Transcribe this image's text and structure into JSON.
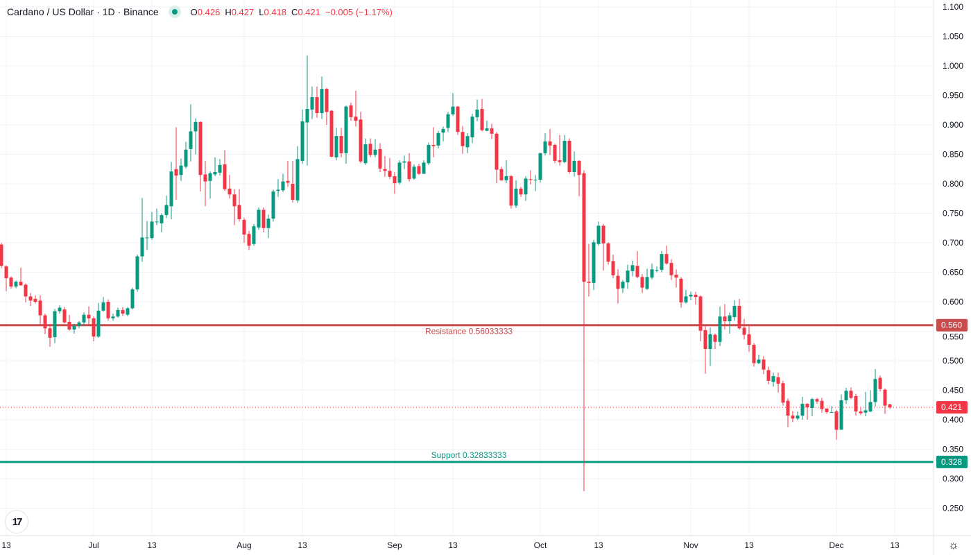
{
  "header": {
    "title": "Cardano / US Dollar · 1D · Binance",
    "open_label": "O",
    "open": "0.426",
    "high_label": "H",
    "high": "0.427",
    "low_label": "L",
    "low": "0.418",
    "close_label": "C",
    "close": "0.421",
    "change": "−0.005 (−1.17%)"
  },
  "logo": "TV",
  "colors": {
    "up": "#089981",
    "down": "#f23645",
    "resistance": "#c94b4b",
    "support": "#089981",
    "grid": "#f0f3fa",
    "text": "#131722"
  },
  "chart_data": {
    "type": "candlestick",
    "title": "Cardano / US Dollar · 1D · Binance",
    "x_start_date": "Jun 12",
    "ylim": [
      0.235,
      1.11
    ],
    "y_ticks": [
      "1.100",
      "1.050",
      "1.000",
      "0.950",
      "0.900",
      "0.850",
      "0.800",
      "0.750",
      "0.700",
      "0.650",
      "0.600",
      "0.550",
      "0.500",
      "0.450",
      "0.400",
      "0.350",
      "0.300",
      "0.250"
    ],
    "x_ticks": [
      {
        "label": "13",
        "index": 1
      },
      {
        "label": "Jul",
        "index": 19
      },
      {
        "label": "13",
        "index": 31
      },
      {
        "label": "Aug",
        "index": 50
      },
      {
        "label": "13",
        "index": 62
      },
      {
        "label": "Sep",
        "index": 81
      },
      {
        "label": "13",
        "index": 93
      },
      {
        "label": "Oct",
        "index": 111
      },
      {
        "label": "13",
        "index": 123
      },
      {
        "label": "Nov",
        "index": 142
      },
      {
        "label": "13",
        "index": 154
      },
      {
        "label": "Dec",
        "index": 172
      },
      {
        "label": "13",
        "index": 184
      }
    ],
    "lines": [
      {
        "name": "Resistance",
        "label": "Resistance 0.56033333",
        "value": 0.56033333,
        "tag": "0.560",
        "color": "#c94b4b"
      },
      {
        "name": "Support",
        "label": "Support 0.32833333",
        "value": 0.32833333,
        "tag": "0.328",
        "color": "#089981"
      }
    ],
    "last_price": {
      "value": 0.421,
      "tag": "0.421",
      "color": "#f23645"
    },
    "ohlc": [
      [
        0.697,
        0.7,
        0.657,
        0.661
      ],
      [
        0.66,
        0.662,
        0.618,
        0.64
      ],
      [
        0.641,
        0.643,
        0.622,
        0.626
      ],
      [
        0.626,
        0.636,
        0.623,
        0.634
      ],
      [
        0.634,
        0.658,
        0.627,
        0.628
      ],
      [
        0.629,
        0.631,
        0.599,
        0.609
      ],
      [
        0.609,
        0.615,
        0.593,
        0.602
      ],
      [
        0.605,
        0.611,
        0.597,
        0.6
      ],
      [
        0.602,
        0.611,
        0.561,
        0.577
      ],
      [
        0.577,
        0.58,
        0.545,
        0.555
      ],
      [
        0.555,
        0.562,
        0.524,
        0.539
      ],
      [
        0.54,
        0.588,
        0.53,
        0.584
      ],
      [
        0.584,
        0.594,
        0.58,
        0.59
      ],
      [
        0.587,
        0.591,
        0.563,
        0.565
      ],
      [
        0.566,
        0.578,
        0.551,
        0.553
      ],
      [
        0.553,
        0.563,
        0.546,
        0.559
      ],
      [
        0.559,
        0.567,
        0.555,
        0.565
      ],
      [
        0.565,
        0.582,
        0.559,
        0.578
      ],
      [
        0.578,
        0.592,
        0.56,
        0.572
      ],
      [
        0.572,
        0.575,
        0.533,
        0.541
      ],
      [
        0.541,
        0.598,
        0.539,
        0.585
      ],
      [
        0.585,
        0.608,
        0.583,
        0.599
      ],
      [
        0.6,
        0.604,
        0.568,
        0.572
      ],
      [
        0.572,
        0.58,
        0.568,
        0.575
      ],
      [
        0.575,
        0.59,
        0.573,
        0.586
      ],
      [
        0.586,
        0.591,
        0.576,
        0.58
      ],
      [
        0.578,
        0.591,
        0.575,
        0.589
      ],
      [
        0.589,
        0.624,
        0.587,
        0.621
      ],
      [
        0.621,
        0.68,
        0.617,
        0.677
      ],
      [
        0.677,
        0.776,
        0.668,
        0.709
      ],
      [
        0.709,
        0.737,
        0.688,
        0.709
      ],
      [
        0.708,
        0.752,
        0.705,
        0.736
      ],
      [
        0.736,
        0.758,
        0.73,
        0.736
      ],
      [
        0.733,
        0.75,
        0.718,
        0.747
      ],
      [
        0.747,
        0.78,
        0.742,
        0.764
      ],
      [
        0.762,
        0.837,
        0.74,
        0.821
      ],
      [
        0.825,
        0.896,
        0.773,
        0.814
      ],
      [
        0.815,
        0.843,
        0.805,
        0.831
      ],
      [
        0.829,
        0.871,
        0.826,
        0.858
      ],
      [
        0.859,
        0.935,
        0.838,
        0.889
      ],
      [
        0.889,
        0.911,
        0.85,
        0.905
      ],
      [
        0.905,
        0.906,
        0.787,
        0.815
      ],
      [
        0.816,
        0.839,
        0.762,
        0.804
      ],
      [
        0.805,
        0.821,
        0.775,
        0.818
      ],
      [
        0.816,
        0.845,
        0.813,
        0.82
      ],
      [
        0.819,
        0.842,
        0.814,
        0.832
      ],
      [
        0.833,
        0.857,
        0.788,
        0.791
      ],
      [
        0.792,
        0.815,
        0.775,
        0.782
      ],
      [
        0.782,
        0.791,
        0.73,
        0.762
      ],
      [
        0.764,
        0.791,
        0.736,
        0.74
      ],
      [
        0.739,
        0.742,
        0.7,
        0.714
      ],
      [
        0.715,
        0.72,
        0.688,
        0.695
      ],
      [
        0.698,
        0.732,
        0.695,
        0.728
      ],
      [
        0.726,
        0.76,
        0.722,
        0.756
      ],
      [
        0.756,
        0.76,
        0.718,
        0.725
      ],
      [
        0.725,
        0.748,
        0.708,
        0.741
      ],
      [
        0.741,
        0.79,
        0.736,
        0.787
      ],
      [
        0.788,
        0.808,
        0.778,
        0.79
      ],
      [
        0.789,
        0.817,
        0.786,
        0.804
      ],
      [
        0.805,
        0.839,
        0.795,
        0.802
      ],
      [
        0.8,
        0.839,
        0.768,
        0.773
      ],
      [
        0.772,
        0.864,
        0.768,
        0.842
      ],
      [
        0.839,
        0.926,
        0.834,
        0.906
      ],
      [
        0.904,
        1.018,
        0.831,
        0.927
      ],
      [
        0.926,
        0.965,
        0.91,
        0.947
      ],
      [
        0.947,
        0.965,
        0.912,
        0.92
      ],
      [
        0.92,
        0.982,
        0.91,
        0.961
      ],
      [
        0.961,
        0.963,
        0.9,
        0.922
      ],
      [
        0.924,
        0.925,
        0.845,
        0.846
      ],
      [
        0.845,
        0.895,
        0.84,
        0.881
      ],
      [
        0.881,
        0.895,
        0.845,
        0.852
      ],
      [
        0.852,
        0.933,
        0.834,
        0.931
      ],
      [
        0.933,
        0.938,
        0.907,
        0.913
      ],
      [
        0.914,
        0.958,
        0.897,
        0.907
      ],
      [
        0.909,
        0.922,
        0.835,
        0.838
      ],
      [
        0.835,
        0.877,
        0.832,
        0.867
      ],
      [
        0.868,
        0.877,
        0.845,
        0.849
      ],
      [
        0.849,
        0.876,
        0.845,
        0.858
      ],
      [
        0.859,
        0.869,
        0.82,
        0.826
      ],
      [
        0.825,
        0.847,
        0.812,
        0.822
      ],
      [
        0.822,
        0.844,
        0.808,
        0.812
      ],
      [
        0.813,
        0.82,
        0.783,
        0.801
      ],
      [
        0.802,
        0.84,
        0.799,
        0.836
      ],
      [
        0.836,
        0.848,
        0.825,
        0.838
      ],
      [
        0.838,
        0.852,
        0.804,
        0.808
      ],
      [
        0.809,
        0.833,
        0.807,
        0.829
      ],
      [
        0.83,
        0.834,
        0.815,
        0.817
      ],
      [
        0.817,
        0.84,
        0.817,
        0.836
      ],
      [
        0.835,
        0.87,
        0.832,
        0.866
      ],
      [
        0.866,
        0.896,
        0.845,
        0.864
      ],
      [
        0.865,
        0.89,
        0.86,
        0.886
      ],
      [
        0.887,
        0.897,
        0.872,
        0.893
      ],
      [
        0.895,
        0.922,
        0.888,
        0.918
      ],
      [
        0.918,
        0.954,
        0.915,
        0.931
      ],
      [
        0.931,
        0.932,
        0.883,
        0.888
      ],
      [
        0.888,
        0.898,
        0.851,
        0.864
      ],
      [
        0.862,
        0.886,
        0.852,
        0.881
      ],
      [
        0.879,
        0.919,
        0.869,
        0.914
      ],
      [
        0.913,
        0.943,
        0.906,
        0.926
      ],
      [
        0.927,
        0.944,
        0.889,
        0.891
      ],
      [
        0.89,
        0.907,
        0.889,
        0.894
      ],
      [
        0.894,
        0.902,
        0.876,
        0.885
      ],
      [
        0.885,
        0.888,
        0.801,
        0.824
      ],
      [
        0.825,
        0.829,
        0.805,
        0.806
      ],
      [
        0.806,
        0.84,
        0.801,
        0.813
      ],
      [
        0.813,
        0.815,
        0.758,
        0.763
      ],
      [
        0.763,
        0.806,
        0.759,
        0.792
      ],
      [
        0.792,
        0.795,
        0.778,
        0.782
      ],
      [
        0.782,
        0.813,
        0.771,
        0.809
      ],
      [
        0.808,
        0.823,
        0.799,
        0.807
      ],
      [
        0.806,
        0.815,
        0.788,
        0.807
      ],
      [
        0.807,
        0.853,
        0.802,
        0.852
      ],
      [
        0.852,
        0.886,
        0.848,
        0.872
      ],
      [
        0.872,
        0.893,
        0.849,
        0.865
      ],
      [
        0.866,
        0.868,
        0.835,
        0.839
      ],
      [
        0.84,
        0.883,
        0.831,
        0.837
      ],
      [
        0.837,
        0.883,
        0.835,
        0.873
      ],
      [
        0.873,
        0.877,
        0.817,
        0.82
      ],
      [
        0.82,
        0.855,
        0.812,
        0.839
      ],
      [
        0.839,
        0.84,
        0.779,
        0.815
      ],
      [
        0.818,
        0.823,
        0.279,
        0.634
      ],
      [
        0.634,
        0.698,
        0.609,
        0.632
      ],
      [
        0.632,
        0.705,
        0.62,
        0.701
      ],
      [
        0.698,
        0.736,
        0.695,
        0.729
      ],
      [
        0.729,
        0.732,
        0.653,
        0.699
      ],
      [
        0.699,
        0.701,
        0.663,
        0.668
      ],
      [
        0.669,
        0.68,
        0.64,
        0.645
      ],
      [
        0.644,
        0.655,
        0.597,
        0.622
      ],
      [
        0.623,
        0.637,
        0.615,
        0.634
      ],
      [
        0.633,
        0.663,
        0.622,
        0.653
      ],
      [
        0.652,
        0.67,
        0.643,
        0.662
      ],
      [
        0.661,
        0.686,
        0.64,
        0.642
      ],
      [
        0.642,
        0.647,
        0.615,
        0.624
      ],
      [
        0.622,
        0.656,
        0.62,
        0.642
      ],
      [
        0.641,
        0.665,
        0.638,
        0.655
      ],
      [
        0.654,
        0.66,
        0.65,
        0.654
      ],
      [
        0.654,
        0.686,
        0.65,
        0.681
      ],
      [
        0.681,
        0.695,
        0.663,
        0.665
      ],
      [
        0.666,
        0.672,
        0.637,
        0.645
      ],
      [
        0.646,
        0.655,
        0.624,
        0.641
      ],
      [
        0.639,
        0.642,
        0.59,
        0.599
      ],
      [
        0.599,
        0.62,
        0.597,
        0.609
      ],
      [
        0.609,
        0.617,
        0.603,
        0.612
      ],
      [
        0.612,
        0.617,
        0.595,
        0.608
      ],
      [
        0.609,
        0.611,
        0.533,
        0.551
      ],
      [
        0.552,
        0.56,
        0.478,
        0.52
      ],
      [
        0.52,
        0.556,
        0.491,
        0.545
      ],
      [
        0.544,
        0.546,
        0.52,
        0.532
      ],
      [
        0.532,
        0.592,
        0.525,
        0.575
      ],
      [
        0.575,
        0.596,
        0.553,
        0.567
      ],
      [
        0.567,
        0.582,
        0.546,
        0.577
      ],
      [
        0.574,
        0.603,
        0.568,
        0.593
      ],
      [
        0.593,
        0.605,
        0.553,
        0.555
      ],
      [
        0.556,
        0.571,
        0.536,
        0.544
      ],
      [
        0.545,
        0.56,
        0.515,
        0.527
      ],
      [
        0.527,
        0.53,
        0.49,
        0.496
      ],
      [
        0.496,
        0.51,
        0.494,
        0.502
      ],
      [
        0.502,
        0.508,
        0.477,
        0.485
      ],
      [
        0.484,
        0.49,
        0.46,
        0.466
      ],
      [
        0.464,
        0.48,
        0.456,
        0.474
      ],
      [
        0.472,
        0.48,
        0.446,
        0.461
      ],
      [
        0.462,
        0.466,
        0.424,
        0.429
      ],
      [
        0.432,
        0.436,
        0.387,
        0.407
      ],
      [
        0.407,
        0.415,
        0.396,
        0.402
      ],
      [
        0.402,
        0.414,
        0.399,
        0.407
      ],
      [
        0.407,
        0.439,
        0.4,
        0.427
      ],
      [
        0.427,
        0.428,
        0.4,
        0.421
      ],
      [
        0.42,
        0.437,
        0.406,
        0.435
      ],
      [
        0.435,
        0.437,
        0.427,
        0.431
      ],
      [
        0.432,
        0.437,
        0.412,
        0.418
      ],
      [
        0.419,
        0.419,
        0.41,
        0.413
      ],
      [
        0.413,
        0.423,
        0.413,
        0.413
      ],
      [
        0.414,
        0.417,
        0.366,
        0.383
      ],
      [
        0.383,
        0.443,
        0.383,
        0.433
      ],
      [
        0.433,
        0.454,
        0.427,
        0.449
      ],
      [
        0.449,
        0.455,
        0.435,
        0.437
      ],
      [
        0.44,
        0.444,
        0.407,
        0.414
      ],
      [
        0.414,
        0.42,
        0.408,
        0.411
      ],
      [
        0.412,
        0.447,
        0.406,
        0.416
      ],
      [
        0.414,
        0.45,
        0.413,
        0.43
      ],
      [
        0.43,
        0.486,
        0.422,
        0.469
      ],
      [
        0.471,
        0.475,
        0.448,
        0.452
      ],
      [
        0.451,
        0.453,
        0.41,
        0.424
      ],
      [
        0.426,
        0.427,
        0.418,
        0.421
      ]
    ]
  }
}
